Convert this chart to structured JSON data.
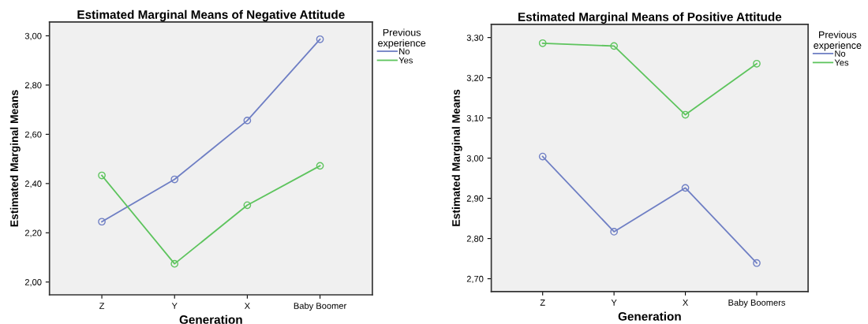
{
  "chart_data": [
    {
      "type": "line",
      "title": "Estimated Marginal Means of Negative Attitude",
      "xlabel": "Generation",
      "ylabel": "Estimated Marginal Means",
      "legend_title": "Previous experience",
      "categories": [
        "Z",
        "Y",
        "X",
        "Baby Boomer"
      ],
      "series": [
        {
          "name": "No",
          "color": "#6f7fc4",
          "values": [
            2.245,
            2.417,
            2.656,
            2.986
          ]
        },
        {
          "name": "Yes",
          "color": "#5ec45e",
          "values": [
            2.433,
            2.074,
            2.312,
            2.472
          ]
        }
      ],
      "ylim": [
        1.948,
        3.056
      ],
      "yticks": [
        {
          "value": 2.0,
          "label": "2,00"
        },
        {
          "value": 2.2,
          "label": "2,20"
        },
        {
          "value": 2.4,
          "label": "2,40"
        },
        {
          "value": 2.6,
          "label": "2,60"
        },
        {
          "value": 2.8,
          "label": "2,80"
        },
        {
          "value": 3.0,
          "label": "3,00"
        }
      ],
      "marker": "circle",
      "line_style": "solid",
      "grid": false,
      "legend": "top right"
    },
    {
      "type": "line",
      "title": "Estimated Marginal Means of Positive Attitude",
      "xlabel": "Generation",
      "ylabel": "Estimated Marginal Means",
      "legend_title": "Previous experience",
      "categories": [
        "Z",
        "Y",
        "X",
        "Baby Boomers"
      ],
      "series": [
        {
          "name": "No",
          "color": "#6f7fc4",
          "values": [
            3.004,
            2.817,
            2.926,
            2.739
          ]
        },
        {
          "name": "Yes",
          "color": "#5ec45e",
          "values": [
            3.286,
            3.279,
            3.108,
            3.235
          ]
        }
      ],
      "ylim": [
        2.668,
        3.333
      ],
      "yticks": [
        {
          "value": 2.7,
          "label": "2,70"
        },
        {
          "value": 2.8,
          "label": "2,80"
        },
        {
          "value": 2.9,
          "label": "2,90"
        },
        {
          "value": 3.0,
          "label": "3,00"
        },
        {
          "value": 3.1,
          "label": "3,10"
        },
        {
          "value": 3.2,
          "label": "3,20"
        },
        {
          "value": 3.3,
          "label": "3,30"
        }
      ],
      "marker": "circle",
      "line_style": "solid",
      "grid": false,
      "legend": "top right"
    }
  ]
}
